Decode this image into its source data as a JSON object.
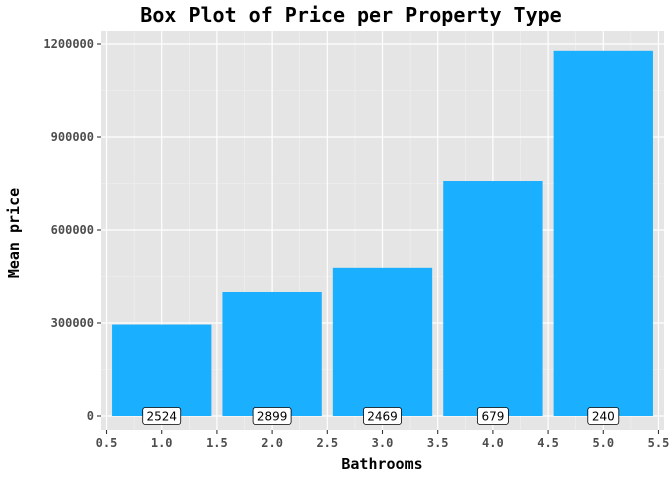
{
  "chart_data": {
    "type": "bar",
    "title": "Box Plot of Price per Property Type",
    "xlabel": "Bathrooms",
    "ylabel": "Mean price",
    "x": [
      1,
      2,
      3,
      4,
      5
    ],
    "values": [
      295000,
      400000,
      478000,
      758000,
      1178000
    ],
    "counts": [
      "2524",
      "2899",
      "2469",
      "679",
      "240"
    ],
    "xlim": [
      0.5,
      5.5
    ],
    "ylim": [
      0,
      1200000
    ],
    "x_ticks": [
      0.5,
      1.0,
      1.5,
      2.0,
      2.5,
      3.0,
      3.5,
      4.0,
      4.5,
      5.0,
      5.5
    ],
    "x_tick_labels": [
      "0.5",
      "1.0",
      "1.5",
      "2.0",
      "2.5",
      "3.0",
      "3.5",
      "4.0",
      "4.5",
      "5.0",
      "5.5"
    ],
    "y_ticks": [
      0,
      300000,
      600000,
      900000,
      1200000
    ],
    "y_tick_labels": [
      "0",
      "300000",
      "600000",
      "900000",
      "1200000"
    ],
    "bar_color": "#1AB0FF",
    "panel_color": "#E5E5E5",
    "grid": true,
    "legend": "none"
  }
}
